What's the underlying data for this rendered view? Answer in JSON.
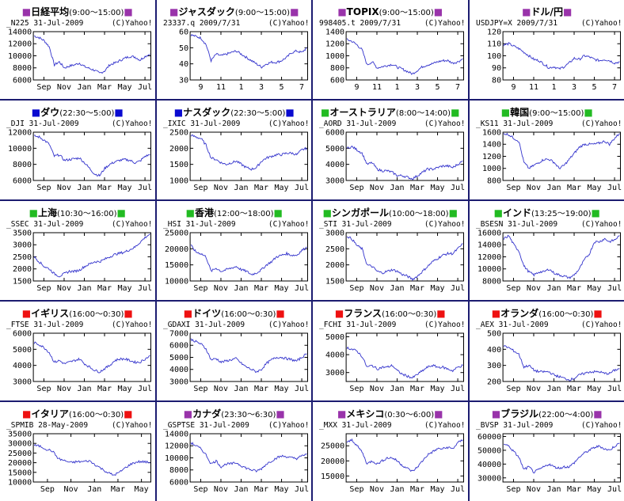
{
  "square_colors": {
    "japan": "#9933aa",
    "us": "#0a0ad0",
    "asia": "#22bb22",
    "europe": "#ee1111",
    "americas": "#9933aa"
  },
  "line_color": "#3333cc",
  "months_12": [
    "Sep",
    "Nov",
    "Jan",
    "Mar",
    "May",
    "Jul"
  ],
  "months_10": [
    "Sep",
    "Nov",
    "Jan",
    "Mar",
    "May"
  ],
  "months_num": [
    "9",
    "11",
    "1",
    "3",
    "5",
    "7"
  ],
  "charts": [
    {
      "name": "日経平均",
      "time": "(9:00〜15:00)",
      "color": "japan",
      "sub": "_N225 31-Jul-2009",
      "copy": "(C)Yahoo!",
      "yticks": [
        "14000",
        "12000",
        "10000",
        "8000",
        "6000"
      ],
      "ylim": [
        6000,
        14000
      ],
      "xticks": "months_12",
      "values": [
        13300,
        13000,
        12500,
        11500,
        8500,
        9000,
        8000,
        8300,
        8500,
        8800,
        8200,
        7900,
        7600,
        7100,
        7500,
        8500,
        8800,
        9200,
        9600,
        9900,
        9800,
        9300,
        9900,
        10300
      ]
    },
    {
      "name": "ジャスダック",
      "time": "(9:00〜15:00)",
      "color": "japan",
      "sub": "23337.q 2009/7/31",
      "copy": "(C)Yahoo!",
      "yticks": [
        "60",
        "50",
        "40",
        "30"
      ],
      "ylim": [
        30,
        60
      ],
      "xticks": "months_num",
      "values": [
        58,
        57,
        56,
        52,
        42,
        46,
        45,
        46,
        47,
        48,
        46,
        44,
        42,
        40,
        38,
        40,
        41,
        41,
        42,
        44,
        47,
        48,
        47,
        50
      ]
    },
    {
      "name": "TOPIX",
      "time": "(9:00〜15:00)",
      "color": "japan",
      "sub": "998405.t 2009/7/31",
      "copy": "(C)Yahoo!",
      "yticks": [
        "1400",
        "1200",
        "1000",
        "800",
        "600"
      ],
      "ylim": [
        600,
        1400
      ],
      "xticks": "months_num",
      "values": [
        1270,
        1240,
        1180,
        1100,
        850,
        900,
        800,
        820,
        840,
        860,
        810,
        780,
        740,
        700,
        760,
        820,
        850,
        870,
        900,
        920,
        920,
        880,
        900,
        950
      ]
    },
    {
      "name": "ドル/円",
      "time": "",
      "color": "japan",
      "sub": "USDJPY=X 2009/7/31",
      "copy": "(C)Yahoo!",
      "yticks": [
        "120",
        "110",
        "100",
        "90",
        "80"
      ],
      "ylim": [
        80,
        120
      ],
      "xticks": "months_num",
      "values": [
        109,
        110,
        108,
        106,
        103,
        100,
        97,
        96,
        93,
        90,
        91,
        89,
        91,
        94,
        98,
        97,
        100,
        99,
        97,
        96,
        97,
        96,
        94,
        95
      ]
    },
    {
      "name": "ダウ",
      "time": "(22:30〜5:00)",
      "color": "us",
      "sub": "_DJI 31-Jul-2009",
      "copy": "(C)Yahoo!",
      "yticks": [
        "12000",
        "10000",
        "8000",
        "6000"
      ],
      "ylim": [
        6000,
        12000
      ],
      "xticks": "months_12",
      "values": [
        11500,
        11400,
        11000,
        10500,
        9000,
        9200,
        8500,
        8600,
        8700,
        8800,
        8200,
        7500,
        6800,
        6600,
        7500,
        8000,
        8300,
        8500,
        8600,
        8500,
        8200,
        8400,
        9000,
        9200
      ]
    },
    {
      "name": "ナスダック",
      "time": "(22:30〜5:00)",
      "color": "us",
      "sub": "_IXIC 31-Jul-2009",
      "copy": "(C)Yahoo!",
      "yticks": [
        "2500",
        "2000",
        "1500",
        "1000"
      ],
      "ylim": [
        1000,
        2500
      ],
      "xticks": "months_12",
      "values": [
        2400,
        2350,
        2300,
        2100,
        1700,
        1650,
        1550,
        1500,
        1550,
        1600,
        1500,
        1400,
        1350,
        1400,
        1600,
        1700,
        1750,
        1800,
        1800,
        1850,
        1850,
        1800,
        1950,
        2000
      ]
    },
    {
      "name": "オーストラリア",
      "time": "(8:00〜14:00)",
      "color": "asia",
      "sub": "_AORD 31-Jul-2009",
      "copy": "(C)Yahoo!",
      "yticks": [
        "6000",
        "5000",
        "4000",
        "3000"
      ],
      "ylim": [
        3000,
        6000
      ],
      "xticks": "months_12",
      "values": [
        5000,
        5100,
        4900,
        4700,
        4000,
        4100,
        3700,
        3600,
        3600,
        3500,
        3300,
        3300,
        3200,
        3100,
        3300,
        3500,
        3700,
        3700,
        3800,
        3900,
        3900,
        3800,
        4000,
        4200
      ]
    },
    {
      "name": "韓国",
      "time": "(9:00〜15:00)",
      "color": "asia",
      "sub": "_KS11 31-Jul-2009",
      "copy": "(C)Yahoo!",
      "yticks": [
        "1600",
        "1400",
        "1200",
        "1000",
        "800"
      ],
      "ylim": [
        800,
        1600
      ],
      "xticks": "months_12",
      "values": [
        1580,
        1560,
        1500,
        1450,
        1100,
        1000,
        1050,
        1100,
        1150,
        1150,
        1100,
        1000,
        1050,
        1150,
        1250,
        1350,
        1400,
        1400,
        1400,
        1420,
        1450,
        1400,
        1500,
        1580
      ]
    },
    {
      "name": "上海",
      "time": "(10:30〜16:00)",
      "color": "asia",
      "sub": "_SSEC 31-Jul-2009",
      "copy": "(C)Yahoo!",
      "yticks": [
        "3500",
        "3000",
        "2500",
        "2000",
        "1500"
      ],
      "ylim": [
        1500,
        3500
      ],
      "xticks": "months_12",
      "values": [
        2500,
        2300,
        2100,
        2000,
        1800,
        1700,
        1800,
        1900,
        1900,
        1950,
        2100,
        2200,
        2300,
        2300,
        2400,
        2500,
        2600,
        2650,
        2700,
        2800,
        2900,
        3100,
        3300,
        3450
      ]
    },
    {
      "name": "香港",
      "time": "(12:00〜18:00)",
      "color": "asia",
      "sub": "_HSI 31-Jul-2009",
      "copy": "(C)Yahoo!",
      "yticks": [
        "25000",
        "20000",
        "15000",
        "10000"
      ],
      "ylim": [
        10000,
        25000
      ],
      "xticks": "months_12",
      "values": [
        21000,
        19000,
        18500,
        17500,
        13000,
        14000,
        13000,
        13500,
        14000,
        14500,
        13500,
        13000,
        12000,
        12500,
        13500,
        15000,
        16000,
        17500,
        18000,
        18500,
        18000,
        18000,
        19500,
        20500
      ]
    },
    {
      "name": "シンガポール",
      "time": "(10:00〜18:00)",
      "color": "asia",
      "sub": "_STI 31-Jul-2009",
      "copy": "(C)Yahoo!",
      "yticks": [
        "3000",
        "2500",
        "2000",
        "1500"
      ],
      "ylim": [
        1500,
        3000
      ],
      "xticks": "months_12",
      "values": [
        2900,
        2800,
        2600,
        2500,
        2000,
        1950,
        1800,
        1750,
        1800,
        1850,
        1800,
        1700,
        1650,
        1550,
        1650,
        1800,
        1950,
        2100,
        2200,
        2300,
        2350,
        2350,
        2500,
        2650
      ]
    },
    {
      "name": "インド",
      "time": "(13:25〜19:00)",
      "color": "asia",
      "sub": "_BSESN 31-Jul-2009",
      "copy": "(C)Yahoo!",
      "yticks": [
        "16000",
        "14000",
        "12000",
        "10000",
        "8000"
      ],
      "ylim": [
        8000,
        16000
      ],
      "xticks": "months_12",
      "values": [
        15000,
        15500,
        14000,
        13000,
        10500,
        9500,
        9000,
        9500,
        9500,
        10000,
        9300,
        9000,
        8800,
        8500,
        9000,
        10000,
        11500,
        12500,
        14500,
        14500,
        15000,
        14500,
        14800,
        15500
      ]
    },
    {
      "name": "イギリス",
      "time": "(16:00〜0:30)",
      "color": "europe",
      "sub": "_FTSE 31-Jul-2009",
      "copy": "(C)Yahoo!",
      "yticks": [
        "6000",
        "5000",
        "4000",
        "3000"
      ],
      "ylim": [
        3000,
        6000
      ],
      "xticks": "months_12",
      "values": [
        5400,
        5300,
        5100,
        4800,
        4200,
        4300,
        4100,
        4200,
        4300,
        4400,
        4100,
        3900,
        3700,
        3600,
        3800,
        4000,
        4300,
        4400,
        4400,
        4300,
        4200,
        4200,
        4400,
        4600
      ]
    },
    {
      "name": "ドイツ",
      "time": "(16:00〜0:30)",
      "color": "europe",
      "sub": "_GDAXI 31-Jul-2009",
      "copy": "(C)Yahoo!",
      "yticks": [
        "7000",
        "6000",
        "5000",
        "4000",
        "3000"
      ],
      "ylim": [
        3000,
        7000
      ],
      "xticks": "months_12",
      "values": [
        6500,
        6300,
        6100,
        5700,
        4800,
        4900,
        4600,
        4700,
        4800,
        4900,
        4500,
        4200,
        4000,
        3800,
        4000,
        4500,
        4800,
        5000,
        5000,
        4900,
        4800,
        4700,
        5000,
        5300
      ]
    },
    {
      "name": "フランス",
      "time": "(16:00〜0:30)",
      "color": "europe",
      "sub": "_FCHI 31-Jul-2009",
      "copy": "(C)Yahoo!",
      "yticks": [
        "5000",
        "4000",
        "3000"
      ],
      "ylim": [
        2500,
        5200
      ],
      "xticks": "months_12",
      "values": [
        4400,
        4300,
        4200,
        3900,
        3300,
        3400,
        3200,
        3300,
        3300,
        3400,
        3100,
        2900,
        2800,
        2700,
        2900,
        3100,
        3300,
        3400,
        3300,
        3300,
        3200,
        3100,
        3300,
        3400
      ]
    },
    {
      "name": "オランダ",
      "time": "(16:00〜0:30)",
      "color": "europe",
      "sub": "_AEX 31-Jul-2009",
      "copy": "(C)Yahoo!",
      "yticks": [
        "500",
        "400",
        "300",
        "200"
      ],
      "ylim": [
        200,
        500
      ],
      "xticks": "months_12",
      "values": [
        420,
        410,
        390,
        370,
        290,
        300,
        270,
        260,
        260,
        260,
        240,
        230,
        220,
        210,
        220,
        240,
        250,
        260,
        260,
        260,
        250,
        250,
        270,
        280
      ]
    },
    {
      "name": "イタリア",
      "time": "(16:00〜0:30)",
      "color": "europe",
      "sub": "_SPMIB 28-May-2009",
      "copy": "(C)Yahoo!",
      "yticks": [
        "35000",
        "30000",
        "25000",
        "20000",
        "15000",
        "10000"
      ],
      "ylim": [
        10000,
        35000
      ],
      "xticks": "months_10",
      "values": [
        29000,
        28500,
        27000,
        26000,
        22000,
        21000,
        20000,
        20500,
        20500,
        21000,
        19000,
        17000,
        15000,
        13500,
        15000,
        17500,
        19500,
        20500,
        20500,
        20000
      ]
    },
    {
      "name": "カナダ",
      "time": "(23:30〜6:30)",
      "color": "americas",
      "sub": "_GSPTSE 31-Jul-2009",
      "copy": "(C)Yahoo!",
      "yticks": [
        "14000",
        "12000",
        "10000",
        "8000",
        "6000"
      ],
      "ylim": [
        6000,
        14000
      ],
      "xticks": "months_12",
      "values": [
        12500,
        12000,
        11500,
        10500,
        9000,
        9500,
        8500,
        9000,
        9000,
        9200,
        8700,
        8300,
        8000,
        7800,
        8200,
        9000,
        9500,
        10000,
        10300,
        10200,
        10000,
        9900,
        10300,
        10700
      ]
    },
    {
      "name": "メキシコ",
      "time": "(0:30〜6:00)",
      "color": "americas",
      "sub": "_MXX 31-Jul-2009",
      "copy": "(C)Yahoo!",
      "yticks": [
        "25000",
        "20000",
        "15000"
      ],
      "ylim": [
        13000,
        29000
      ],
      "xticks": "months_12",
      "values": [
        26000,
        27000,
        25000,
        23000,
        19000,
        20000,
        19000,
        20000,
        21000,
        21000,
        20000,
        18500,
        17500,
        16500,
        18000,
        20000,
        22000,
        23000,
        24000,
        24000,
        24500,
        24000,
        26000,
        27000
      ]
    },
    {
      "name": "ブラジル",
      "time": "(22:00〜4:00)",
      "color": "americas",
      "sub": "_BVSP 31-Jul-2009",
      "copy": "(C)Yahoo!",
      "yticks": [
        "60000",
        "50000",
        "40000",
        "30000"
      ],
      "ylim": [
        27000,
        62000
      ],
      "xticks": "months_12",
      "values": [
        55000,
        53000,
        49000,
        45000,
        36000,
        38000,
        34000,
        36000,
        38000,
        40000,
        38000,
        37000,
        38000,
        38000,
        41000,
        45000,
        48000,
        50000,
        52000,
        53000,
        51000,
        50000,
        53000,
        55000
      ]
    }
  ]
}
